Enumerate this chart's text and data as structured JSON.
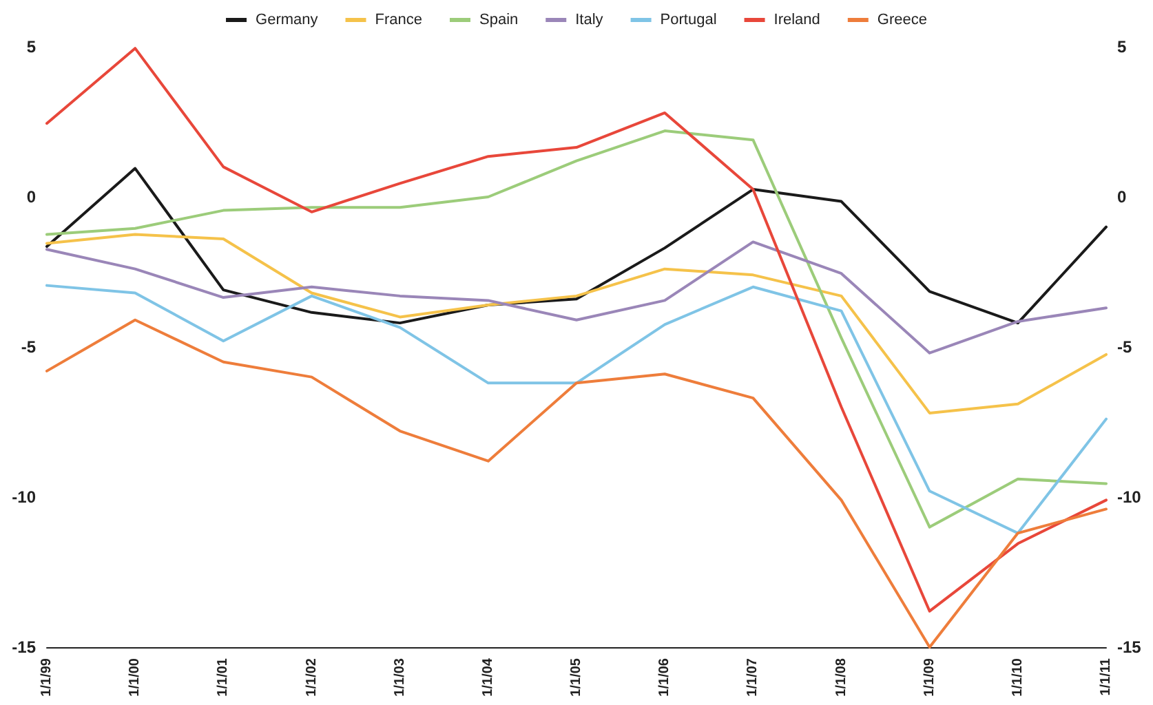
{
  "chart_data": {
    "type": "line",
    "categories": [
      "1/1/99",
      "1/1/00",
      "1/1/01",
      "1/1/02",
      "1/1/03",
      "1/1/04",
      "1/1/05",
      "1/1/06",
      "1/1/07",
      "1/1/08",
      "1/1/09",
      "1/1/10",
      "1/1/11"
    ],
    "series": [
      {
        "name": "Germany",
        "color": "#1a1a1a",
        "values": [
          -1.65,
          0.95,
          -3.1,
          -3.85,
          -4.2,
          -3.6,
          -3.4,
          -1.7,
          0.25,
          -0.15,
          -3.15,
          -4.2,
          -1.0
        ]
      },
      {
        "name": "France",
        "color": "#f5c24a",
        "values": [
          -1.55,
          -1.25,
          -1.4,
          -3.2,
          -4.0,
          -3.6,
          -3.3,
          -2.4,
          -2.6,
          -3.3,
          -7.2,
          -6.9,
          -5.25
        ]
      },
      {
        "name": "Spain",
        "color": "#9ccc7a",
        "values": [
          -1.25,
          -1.05,
          -0.45,
          -0.35,
          -0.35,
          0,
          1.2,
          2.2,
          1.9,
          -4.7,
          -11,
          -9.4,
          -9.55
        ]
      },
      {
        "name": "Italy",
        "color": "#9a86b8",
        "values": [
          -1.75,
          -2.4,
          -3.35,
          -3.0,
          -3.3,
          -3.45,
          -4.1,
          -3.45,
          -1.5,
          -2.55,
          -5.2,
          -4.15,
          -3.7
        ]
      },
      {
        "name": "Portugal",
        "color": "#7fc4e6",
        "values": [
          -2.95,
          -3.2,
          -4.8,
          -3.3,
          -4.35,
          -6.2,
          -6.2,
          -4.25,
          -3.0,
          -3.8,
          -9.8,
          -11.2,
          -7.4
        ]
      },
      {
        "name": "Ireland",
        "color": "#e8473a",
        "values": [
          2.45,
          4.95,
          1.0,
          -0.5,
          0.45,
          1.35,
          1.65,
          2.8,
          0.25,
          -7,
          -13.8,
          -11.55,
          -10.1
        ]
      },
      {
        "name": "Greece",
        "color": "#ee7d3b",
        "values": [
          -5.8,
          -4.1,
          -5.5,
          -6.0,
          -7.8,
          -8.8,
          -6.2,
          -5.9,
          -6.7,
          -10.1,
          -15,
          -11.2,
          -10.4
        ]
      }
    ],
    "ylim": [
      -15,
      5
    ],
    "yticks": [
      -15,
      -10,
      -5,
      0,
      5
    ],
    "y2lim": [
      -15,
      5
    ],
    "y2ticks": [
      -15,
      -10,
      -5,
      0,
      5
    ],
    "grid": false,
    "legend": "top",
    "marker": "none",
    "line_style": "solid"
  }
}
